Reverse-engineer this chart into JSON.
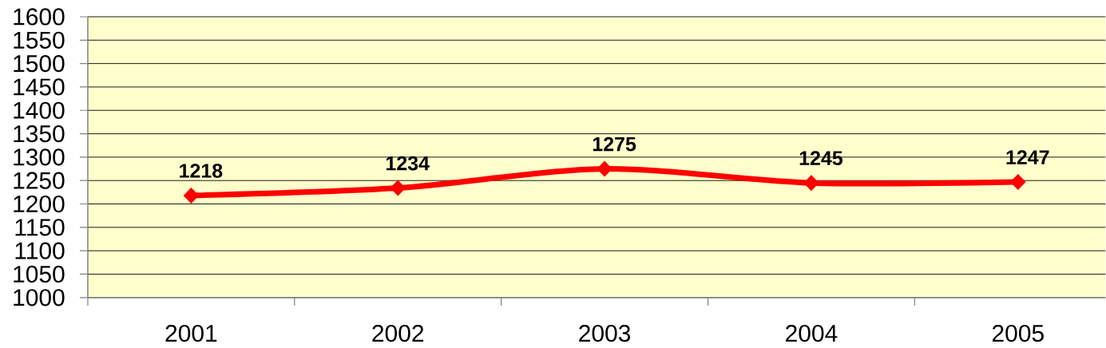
{
  "chart_data": {
    "type": "line",
    "categories": [
      "2001",
      "2002",
      "2003",
      "2004",
      "2005"
    ],
    "series": [
      {
        "color": "#ff0000",
        "values": [
          1218,
          1234,
          1275,
          1245,
          1247
        ]
      }
    ],
    "ylim": [
      1000,
      1600
    ],
    "yticks": [
      1000,
      1050,
      1100,
      1150,
      1200,
      1250,
      1300,
      1350,
      1400,
      1450,
      1500,
      1550,
      1600
    ],
    "grid": "y",
    "marker": "diamond",
    "data_labels": true
  }
}
